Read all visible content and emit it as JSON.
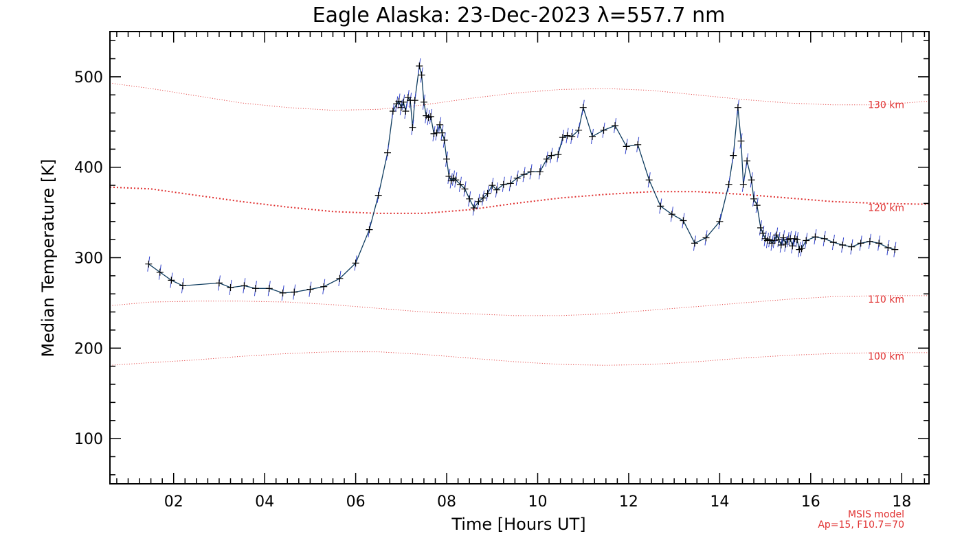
{
  "chart_data": {
    "type": "line",
    "title": "Eagle Alaska: 23-Dec-2023 λ=557.7 nm",
    "xlabel": "Time [Hours UT]",
    "ylabel": "Median Temperature [K]",
    "xlim": [
      0.6,
      18.6
    ],
    "ylim": [
      50,
      550
    ],
    "xticks": [
      2,
      4,
      6,
      8,
      10,
      12,
      14,
      16,
      18
    ],
    "xtick_labels": [
      "02",
      "04",
      "06",
      "08",
      "10",
      "12",
      "14",
      "16",
      "18"
    ],
    "yticks": [
      100,
      200,
      300,
      400,
      500
    ],
    "ytick_labels": [
      "100",
      "200",
      "300",
      "400",
      "500"
    ],
    "grid": false,
    "series": [
      {
        "name": "Median temperature",
        "color": "#0d3b5e",
        "x": [
          1.45,
          1.7,
          1.95,
          2.2,
          3.0,
          3.25,
          3.55,
          3.8,
          4.1,
          4.4,
          4.65,
          5.0,
          5.3,
          5.65,
          6.0,
          6.3,
          6.5,
          6.7,
          6.82,
          6.9,
          6.95,
          7.0,
          7.05,
          7.1,
          7.15,
          7.2,
          7.25,
          7.3,
          7.4,
          7.45,
          7.5,
          7.55,
          7.6,
          7.65,
          7.72,
          7.78,
          7.85,
          7.9,
          7.95,
          8.0,
          8.05,
          8.1,
          8.15,
          8.2,
          8.3,
          8.4,
          8.5,
          8.6,
          8.7,
          8.8,
          8.9,
          9.0,
          9.1,
          9.25,
          9.4,
          9.55,
          9.7,
          9.85,
          10.05,
          10.2,
          10.3,
          10.45,
          10.55,
          10.65,
          10.75,
          10.9,
          11.0,
          11.2,
          11.45,
          11.7,
          11.95,
          12.2,
          12.45,
          12.7,
          12.95,
          13.2,
          13.45,
          13.7,
          14.0,
          14.2,
          14.3,
          14.4,
          14.47,
          14.52,
          14.6,
          14.7,
          14.75,
          14.82,
          14.9,
          14.95,
          15.0,
          15.05,
          15.1,
          15.15,
          15.2,
          15.25,
          15.3,
          15.35,
          15.4,
          15.45,
          15.5,
          15.55,
          15.6,
          15.65,
          15.7,
          15.75,
          15.8,
          15.9,
          16.1,
          16.3,
          16.5,
          16.7,
          16.9,
          17.1,
          17.3,
          17.5,
          17.7,
          17.85
        ],
        "y": [
          293,
          284,
          275,
          269,
          272,
          267,
          269,
          266,
          266,
          261,
          262,
          265,
          268,
          277,
          294,
          331,
          369,
          416,
          462,
          470,
          473,
          466,
          472,
          462,
          477,
          474,
          444,
          474,
          512,
          502,
          472,
          457,
          455,
          456,
          437,
          438,
          447,
          438,
          430,
          409,
          390,
          385,
          388,
          386,
          381,
          376,
          365,
          355,
          362,
          366,
          371,
          380,
          375,
          381,
          382,
          388,
          392,
          395,
          395,
          409,
          413,
          414,
          433,
          435,
          434,
          441,
          466,
          434,
          441,
          446,
          423,
          425,
          386,
          357,
          348,
          341,
          316,
          322,
          340,
          381,
          413,
          466,
          429,
          381,
          407,
          386,
          365,
          358,
          333,
          327,
          321,
          319,
          320,
          316,
          319,
          325,
          320,
          314,
          322,
          315,
          320,
          321,
          313,
          321,
          320,
          309,
          310,
          319,
          323,
          321,
          317,
          314,
          312,
          316,
          318,
          316,
          311,
          309
        ]
      }
    ],
    "msis_curves": [
      {
        "name": "130 km",
        "label": "130 km",
        "x": [
          0.6,
          1.5,
          2.5,
          3.5,
          4.5,
          5.5,
          6.5,
          7.5,
          8.5,
          9.5,
          10.5,
          11.5,
          12.5,
          13.5,
          14.5,
          15.5,
          16.5,
          17.5,
          18.6
        ],
        "y": [
          493,
          487,
          479,
          471,
          466,
          463,
          464,
          469,
          476,
          482,
          486,
          487,
          485,
          480,
          475,
          471,
          469,
          469,
          473
        ]
      },
      {
        "name": "120 km",
        "label": "120 km",
        "x": [
          0.6,
          1.5,
          2.5,
          3.5,
          4.5,
          5.5,
          6.5,
          7.5,
          8.5,
          9.5,
          10.5,
          11.5,
          12.5,
          13.5,
          14.5,
          15.5,
          16.5,
          17.5,
          18.6
        ],
        "y": [
          378,
          376,
          369,
          362,
          356,
          351,
          349,
          349,
          353,
          360,
          366,
          370,
          373,
          373,
          370,
          366,
          362,
          360,
          359
        ]
      },
      {
        "name": "110 km",
        "label": "110 km",
        "x": [
          0.6,
          1.5,
          2.5,
          3.5,
          4.5,
          5.5,
          6.5,
          7.5,
          8.5,
          9.5,
          10.5,
          11.5,
          12.5,
          13.5,
          14.5,
          15.5,
          16.5,
          17.5,
          18.6
        ],
        "y": [
          247,
          251,
          252,
          252,
          251,
          248,
          244,
          240,
          238,
          236,
          236,
          238,
          242,
          246,
          250,
          254,
          257,
          258,
          258
        ]
      },
      {
        "name": "100 km",
        "label": "100 km",
        "x": [
          0.6,
          1.5,
          2.5,
          3.5,
          4.5,
          5.5,
          6.5,
          7.5,
          8.5,
          9.5,
          10.5,
          11.5,
          12.5,
          13.5,
          14.5,
          15.5,
          16.5,
          17.5,
          18.6
        ],
        "y": [
          181,
          184,
          187,
          191,
          194,
          196,
          196,
          193,
          189,
          185,
          182,
          181,
          182,
          185,
          189,
          192,
          194,
          195,
          195
        ]
      }
    ],
    "annotations": [
      "MSIS model",
      "Ap=15, F10.7=70"
    ]
  },
  "colors": {
    "data_line": "#0d3b5e",
    "error_bar": "#3344cc",
    "marker": "#000000",
    "msis": "#e03030",
    "axes": "#000000"
  }
}
